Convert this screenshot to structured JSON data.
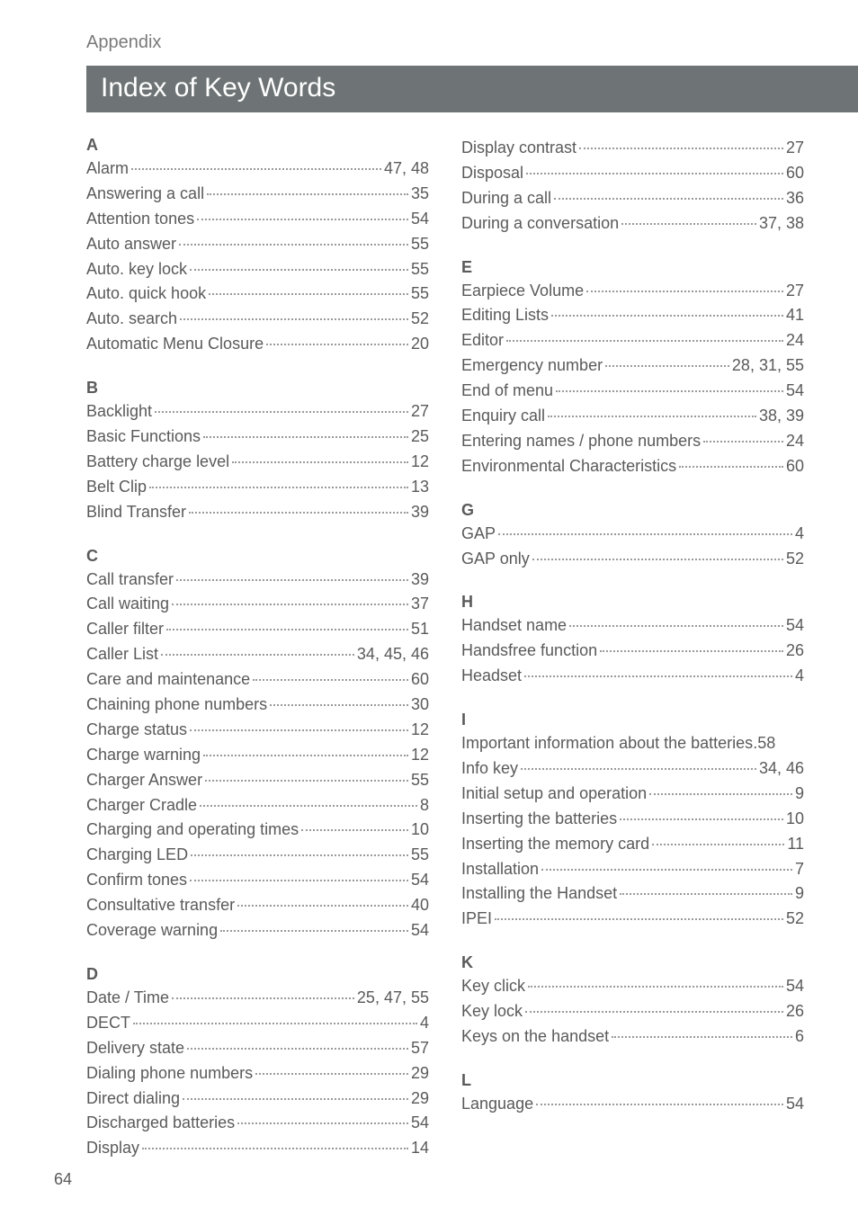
{
  "header": {
    "appendix": "Appendix",
    "title": "Index of Key Words"
  },
  "pageNumber": "64",
  "left": [
    {
      "letter": "A",
      "entries": [
        {
          "label": "Alarm",
          "pages": "47, 48"
        },
        {
          "label": "Answering a call",
          "pages": "35"
        },
        {
          "label": "Attention tones",
          "pages": "54"
        },
        {
          "label": "Auto answer",
          "pages": "55"
        },
        {
          "label": "Auto. key lock",
          "pages": "55"
        },
        {
          "label": "Auto. quick hook",
          "pages": "55"
        },
        {
          "label": "Auto. search",
          "pages": "52"
        },
        {
          "label": "Automatic Menu Closure",
          "pages": "20"
        }
      ]
    },
    {
      "letter": "B",
      "entries": [
        {
          "label": "Backlight",
          "pages": "27"
        },
        {
          "label": "Basic Functions",
          "pages": "25"
        },
        {
          "label": "Battery charge level",
          "pages": "12"
        },
        {
          "label": "Belt Clip",
          "pages": "13"
        },
        {
          "label": "Blind Transfer",
          "pages": "39"
        }
      ]
    },
    {
      "letter": "C",
      "entries": [
        {
          "label": "Call transfer",
          "pages": "39"
        },
        {
          "label": "Call waiting",
          "pages": "37"
        },
        {
          "label": "Caller filter",
          "pages": "51"
        },
        {
          "label": "Caller List",
          "pages": "34, 45, 46"
        },
        {
          "label": "Care and maintenance",
          "pages": "60"
        },
        {
          "label": "Chaining phone numbers",
          "pages": "30"
        },
        {
          "label": "Charge status",
          "pages": "12"
        },
        {
          "label": "Charge warning",
          "pages": "12"
        },
        {
          "label": "Charger Answer",
          "pages": "55"
        },
        {
          "label": "Charger Cradle",
          "pages": "8"
        },
        {
          "label": "Charging and operating times",
          "pages": "10"
        },
        {
          "label": "Charging LED",
          "pages": "55"
        },
        {
          "label": "Confirm tones",
          "pages": "54"
        },
        {
          "label": "Consultative transfer",
          "pages": "40"
        },
        {
          "label": "Coverage warning",
          "pages": "54"
        }
      ]
    },
    {
      "letter": "D",
      "entries": [
        {
          "label": "Date / Time",
          "pages": "25, 47, 55"
        },
        {
          "label": "DECT",
          "pages": "4"
        },
        {
          "label": "Delivery state",
          "pages": "57"
        },
        {
          "label": "Dialing phone numbers",
          "pages": "29"
        },
        {
          "label": "Direct dialing",
          "pages": "29"
        },
        {
          "label": "Discharged batteries",
          "pages": "54"
        },
        {
          "label": "Display",
          "pages": "14"
        }
      ]
    }
  ],
  "right": [
    {
      "letter": "",
      "entries": [
        {
          "label": "Display contrast",
          "pages": "27"
        },
        {
          "label": "Disposal",
          "pages": "60"
        },
        {
          "label": "During a call",
          "pages": "36"
        },
        {
          "label": "During a conversation",
          "pages": "37, 38"
        }
      ]
    },
    {
      "letter": "E",
      "entries": [
        {
          "label": "Earpiece Volume",
          "pages": "27"
        },
        {
          "label": "Editing Lists",
          "pages": "41"
        },
        {
          "label": "Editor",
          "pages": "24"
        },
        {
          "label": "Emergency number",
          "pages": "28, 31, 55"
        },
        {
          "label": "End of menu",
          "pages": "54"
        },
        {
          "label": "Enquiry call",
          "pages": "38, 39"
        },
        {
          "label": "Entering names / phone numbers",
          "pages": "24"
        },
        {
          "label": "Environmental Characteristics",
          "pages": "60"
        }
      ]
    },
    {
      "letter": "G",
      "entries": [
        {
          "label": "GAP",
          "pages": "4"
        },
        {
          "label": "GAP only",
          "pages": "52"
        }
      ]
    },
    {
      "letter": "H",
      "entries": [
        {
          "label": "Handset name",
          "pages": "54"
        },
        {
          "label": "Handsfree function",
          "pages": "26"
        },
        {
          "label": "Headset",
          "pages": "4"
        }
      ]
    },
    {
      "letter": "I",
      "entries": [
        {
          "label": "Important information about the batteries",
          "pages": ".58"
        },
        {
          "label": "Info key",
          "pages": "34, 46"
        },
        {
          "label": "Initial setup and operation",
          "pages": "9"
        },
        {
          "label": "Inserting the batteries",
          "pages": "10"
        },
        {
          "label": "Inserting the memory card",
          "pages": "11"
        },
        {
          "label": "Installation",
          "pages": "7"
        },
        {
          "label": "Installing the Handset",
          "pages": "9"
        },
        {
          "label": "IPEI",
          "pages": "52"
        }
      ]
    },
    {
      "letter": "K",
      "entries": [
        {
          "label": "Key click",
          "pages": "54"
        },
        {
          "label": "Key lock",
          "pages": "26"
        },
        {
          "label": "Keys on the handset",
          "pages": "6"
        }
      ]
    },
    {
      "letter": "L",
      "entries": [
        {
          "label": "Language",
          "pages": "54"
        }
      ]
    }
  ]
}
